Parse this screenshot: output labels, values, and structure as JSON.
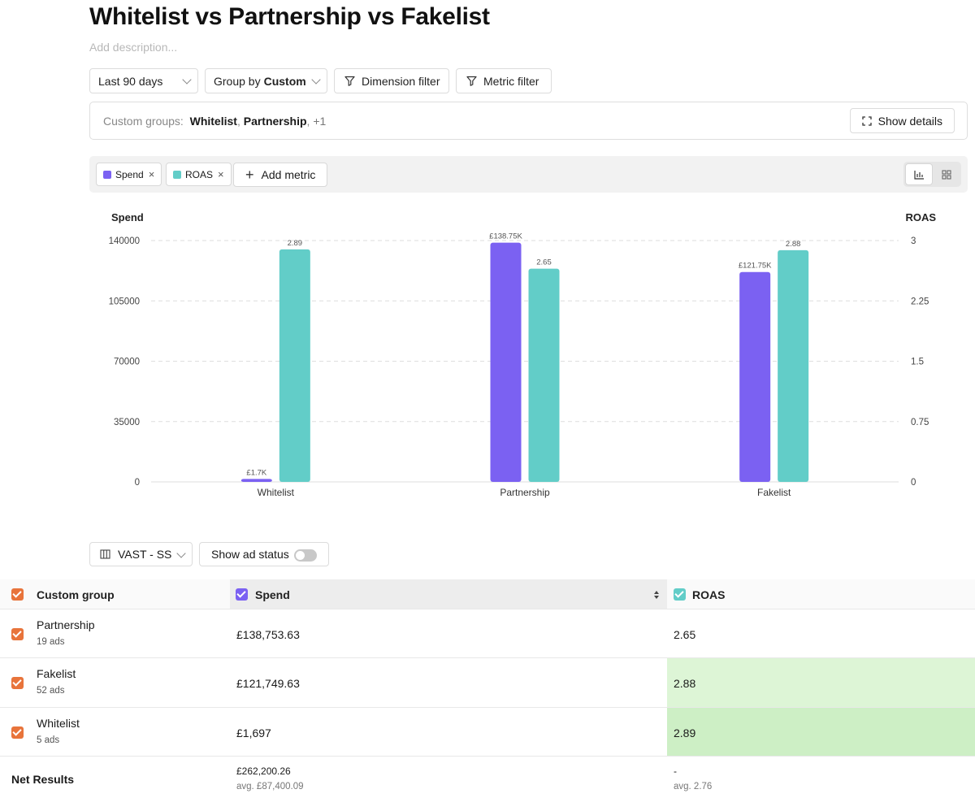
{
  "page": {
    "title": "Whitelist vs Partnership vs Fakelist",
    "description_placeholder": "Add description..."
  },
  "toolbar": {
    "date_range": "Last 90 days",
    "group_by_prefix": "Group by",
    "group_by_value": "Custom",
    "dimension_filter": "Dimension filter",
    "metric_filter": "Metric filter"
  },
  "custom_groups": {
    "label": "Custom groups:",
    "group_1": "Whitelist",
    "sep_1": ",",
    "group_2": "Partnership",
    "sep_2": ",",
    "more": "+1",
    "show_details": "Show details"
  },
  "metrics": {
    "chips": [
      {
        "label": "Spend",
        "color": "#7b61f2"
      },
      {
        "label": "ROAS",
        "color": "#62cdc8"
      }
    ],
    "remove_glyph": "×",
    "add_metric": "Add metric"
  },
  "chart_data": {
    "type": "bar",
    "categories": [
      "Whitelist",
      "Partnership",
      "Fakelist"
    ],
    "series": [
      {
        "name": "Spend",
        "axis": "left",
        "color": "#7b61f2",
        "values": [
          1697,
          138753.63,
          121749.63
        ],
        "labels": [
          "£1.7K",
          "£138.75K",
          "£121.75K"
        ]
      },
      {
        "name": "ROAS",
        "axis": "right",
        "color": "#62cdc8",
        "values": [
          2.89,
          2.65,
          2.88
        ],
        "labels": [
          "2.89",
          "2.65",
          "2.88"
        ]
      }
    ],
    "ylabel_left": "Spend",
    "ylabel_right": "ROAS",
    "ylim_left": [
      0,
      140000
    ],
    "ylim_right": [
      0,
      3
    ],
    "yticks_left": [
      "0",
      "35000",
      "70000",
      "105000",
      "140000"
    ],
    "yticks_right": [
      "0",
      "0.75",
      "1.5",
      "2.25",
      "3"
    ],
    "grid": true
  },
  "table_controls": {
    "columns_preset": "VAST - SS",
    "show_ad_status": "Show ad status"
  },
  "table": {
    "headers": {
      "group": "Custom group",
      "spend": "Spend",
      "roas": "ROAS"
    },
    "rows": [
      {
        "name": "Partnership",
        "ads": "19 ads",
        "spend": "£138,753.63",
        "roas": "2.65"
      },
      {
        "name": "Fakelist",
        "ads": "52 ads",
        "spend": "£121,749.63",
        "roas": "2.88"
      },
      {
        "name": "Whitelist",
        "ads": "5 ads",
        "spend": "£1,697",
        "roas": "2.89"
      }
    ],
    "net": {
      "label": "Net Results",
      "spend": "£262,200.26",
      "spend_avg": "avg. £87,400.09",
      "roas": "-",
      "roas_avg": "avg. 2.76"
    },
    "colors": {
      "checkbox": "#e8743b",
      "spend_header_check": "#7b61f2",
      "roas_header_check": "#62cdc8",
      "highlight_1": "#ddf5d6",
      "highlight_2": "#cdefc5"
    }
  }
}
